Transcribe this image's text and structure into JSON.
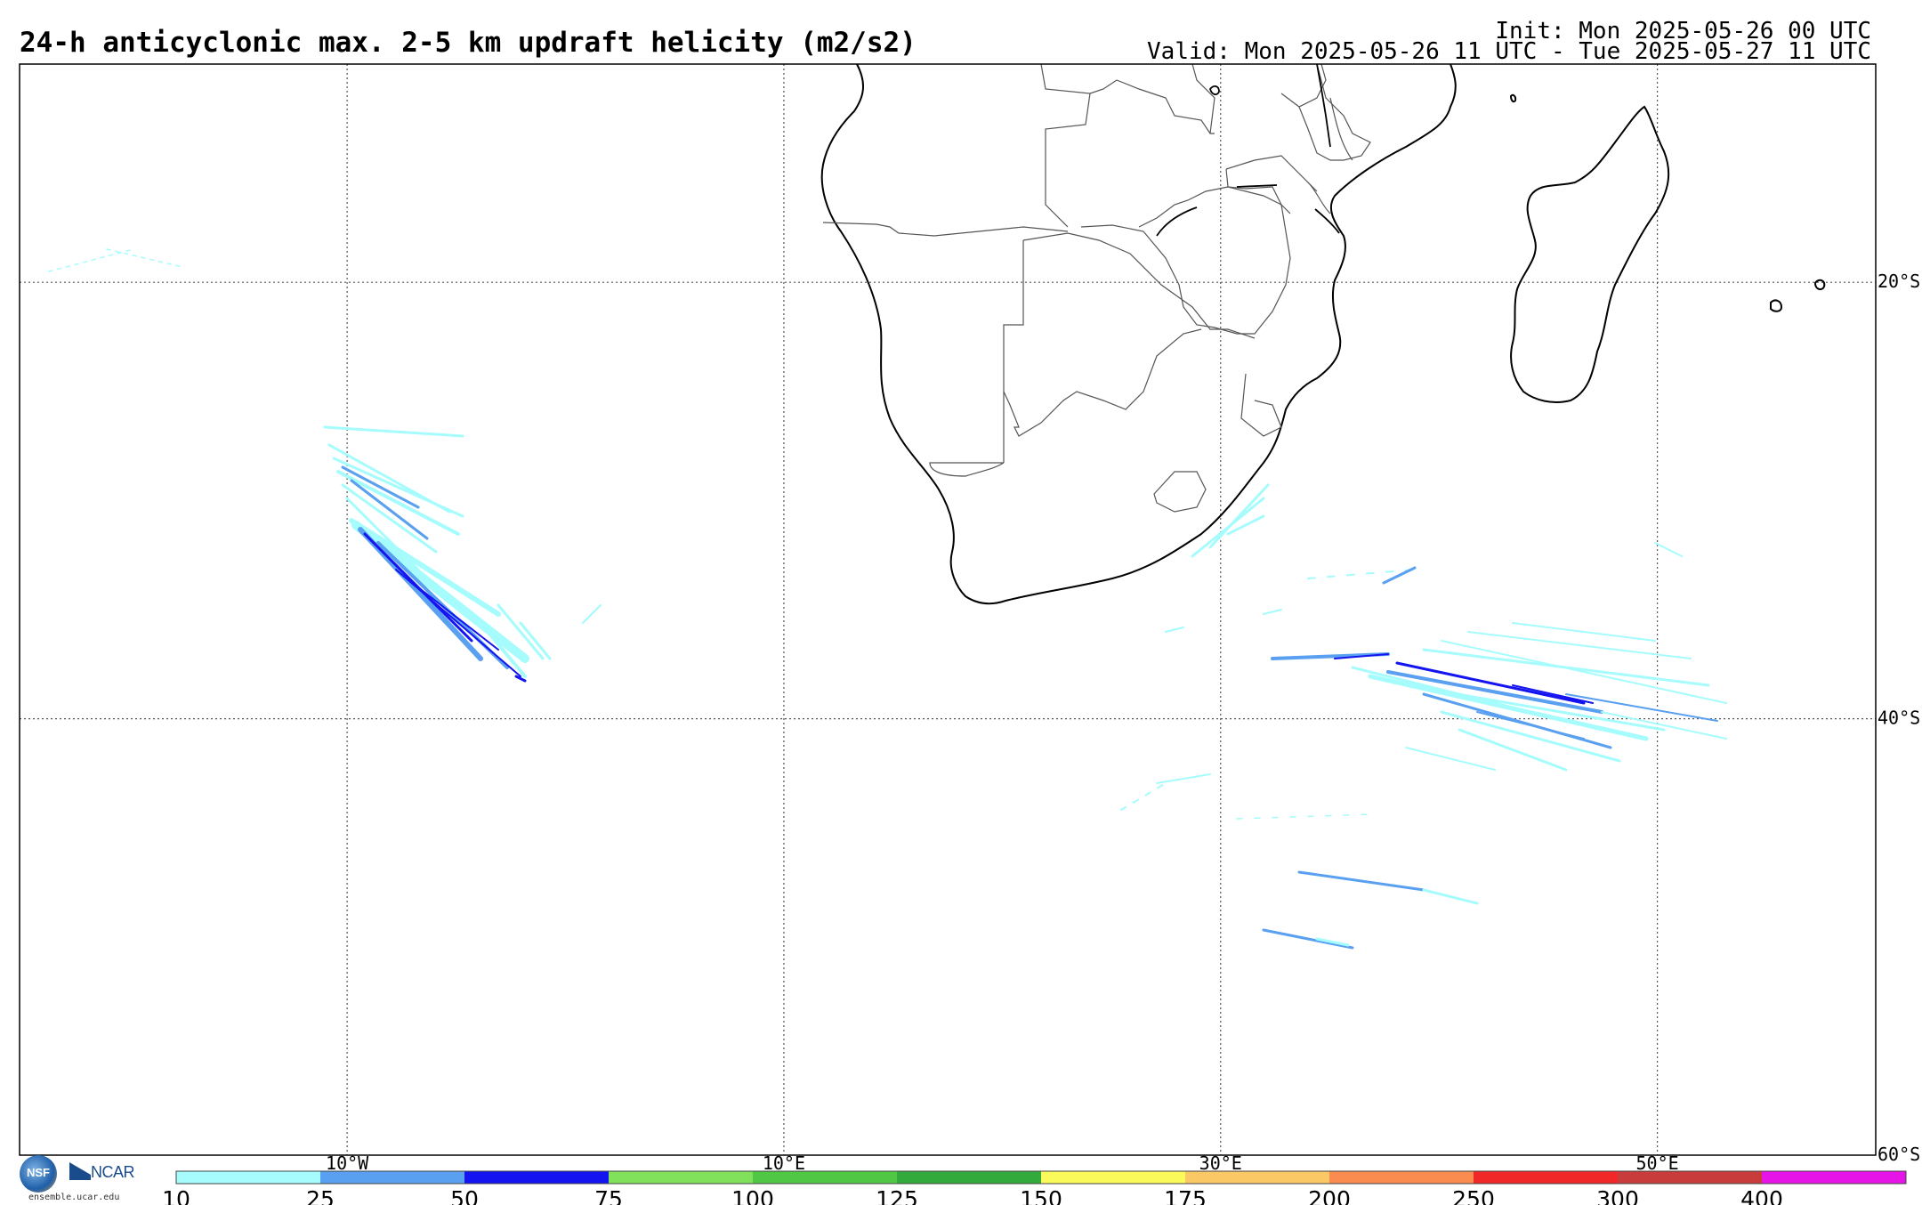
{
  "header": {
    "title": "24-h anticyclonic max. 2-5 km updraft helicity (m2/s2)",
    "init": "Init: Mon 2025-05-26 00 UTC",
    "valid": "Valid: Mon 2025-05-26 11 UTC - Tue 2025-05-27 11 UTC"
  },
  "map": {
    "lon_range": [
      -25,
      60
    ],
    "lat_range": [
      -60,
      -10
    ],
    "lon_ticks": [
      {
        "value": -10,
        "label": "10°W"
      },
      {
        "value": 10,
        "label": "10°E"
      },
      {
        "value": 30,
        "label": "30°E"
      },
      {
        "value": 50,
        "label": "50°E"
      }
    ],
    "lat_ticks": [
      {
        "value": -20,
        "label": "20°S"
      },
      {
        "value": -40,
        "label": "40°S"
      },
      {
        "value": -60,
        "label": "60°S"
      }
    ],
    "gridlines": true,
    "land_color": "#ffffff",
    "coast_color": "#000000",
    "border_color": "#555555"
  },
  "colorbar": {
    "levels": [
      "10",
      "25",
      "50",
      "75",
      "100",
      "125",
      "150",
      "175",
      "200",
      "250",
      "300",
      "400"
    ],
    "colors": [
      "#a6fcfc",
      "#5aa0f0",
      "#1414f0",
      "#82e15a",
      "#50c846",
      "#32aa3c",
      "#fafa5a",
      "#fac864",
      "#fa8c50",
      "#f02828",
      "#c83c3c",
      "#e614e6"
    ]
  },
  "logos": {
    "nsf": "NSF",
    "ncar": "NCAR",
    "url": "ensemble.ucar.edu",
    "nsf_icon": "nsf-globe-icon",
    "ncar_icon": "ncar-wedge-icon"
  }
}
